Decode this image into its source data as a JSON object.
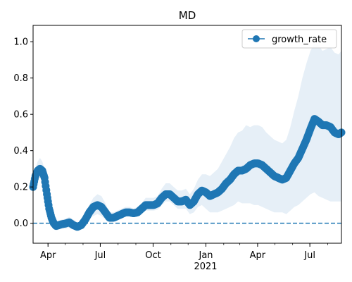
{
  "chart_data": {
    "type": "line",
    "title": "MD",
    "xlabel": "",
    "ylabel": "",
    "x_tick_labels": [
      "Apr",
      "Jul",
      "Oct",
      "Jan",
      "Apr",
      "Jul"
    ],
    "x_tick_dates": [
      "2020-04-01",
      "2020-07-01",
      "2020-10-01",
      "2021-01-01",
      "2021-04-01",
      "2021-07-01"
    ],
    "x_year_label": "2021",
    "y_ticks": [
      0.0,
      0.2,
      0.4,
      0.6,
      0.8,
      1.0
    ],
    "y_tick_labels": [
      "0.0",
      "0.2",
      "0.4",
      "0.6",
      "0.8",
      "1.0"
    ],
    "xlim": [
      "2020-03-06",
      "2021-08-25"
    ],
    "ylim": [
      -0.11,
      1.09
    ],
    "reference_line": {
      "y": 0,
      "style": "dashed"
    },
    "legend": {
      "position": "upper right",
      "entries": [
        "growth_rate"
      ]
    },
    "colors": {
      "line": "#1f77b4",
      "band": "#dce8f4",
      "axes": "#000000"
    },
    "series": [
      {
        "name": "growth_rate",
        "x": [
          "2020-03-06",
          "2020-03-10",
          "2020-03-14",
          "2020-03-18",
          "2020-03-22",
          "2020-03-26",
          "2020-03-30",
          "2020-04-03",
          "2020-04-07",
          "2020-04-11",
          "2020-04-15",
          "2020-04-20",
          "2020-04-25",
          "2020-05-01",
          "2020-05-08",
          "2020-05-15",
          "2020-05-22",
          "2020-05-29",
          "2020-06-05",
          "2020-06-12",
          "2020-06-19",
          "2020-06-26",
          "2020-07-03",
          "2020-07-10",
          "2020-07-17",
          "2020-07-24",
          "2020-07-31",
          "2020-08-07",
          "2020-08-14",
          "2020-08-21",
          "2020-08-28",
          "2020-09-04",
          "2020-09-11",
          "2020-09-18",
          "2020-09-25",
          "2020-10-02",
          "2020-10-09",
          "2020-10-16",
          "2020-10-23",
          "2020-10-30",
          "2020-11-06",
          "2020-11-13",
          "2020-11-20",
          "2020-11-27",
          "2020-12-04",
          "2020-12-11",
          "2020-12-18",
          "2020-12-25",
          "2021-01-01",
          "2021-01-08",
          "2021-01-15",
          "2021-01-22",
          "2021-01-29",
          "2021-02-05",
          "2021-02-12",
          "2021-02-19",
          "2021-02-26",
          "2021-03-05",
          "2021-03-12",
          "2021-03-19",
          "2021-03-26",
          "2021-04-02",
          "2021-04-09",
          "2021-04-16",
          "2021-04-23",
          "2021-04-30",
          "2021-05-07",
          "2021-05-14",
          "2021-05-21",
          "2021-05-28",
          "2021-06-04",
          "2021-06-11",
          "2021-06-18",
          "2021-06-25",
          "2021-07-02",
          "2021-07-09",
          "2021-07-16",
          "2021-07-23",
          "2021-07-30",
          "2021-08-06",
          "2021-08-13",
          "2021-08-20",
          "2021-08-25"
        ],
        "y": [
          0.2,
          0.26,
          0.29,
          0.3,
          0.29,
          0.25,
          0.16,
          0.08,
          0.03,
          0.0,
          -0.015,
          -0.01,
          -0.005,
          -0.002,
          0.005,
          -0.01,
          -0.02,
          -0.01,
          0.02,
          0.06,
          0.09,
          0.1,
          0.09,
          0.06,
          0.03,
          0.03,
          0.04,
          0.05,
          0.06,
          0.06,
          0.055,
          0.06,
          0.08,
          0.1,
          0.1,
          0.1,
          0.11,
          0.14,
          0.16,
          0.16,
          0.14,
          0.12,
          0.12,
          0.13,
          0.1,
          0.12,
          0.16,
          0.18,
          0.17,
          0.15,
          0.16,
          0.17,
          0.19,
          0.22,
          0.24,
          0.27,
          0.29,
          0.29,
          0.3,
          0.32,
          0.33,
          0.33,
          0.32,
          0.3,
          0.28,
          0.26,
          0.25,
          0.24,
          0.25,
          0.29,
          0.33,
          0.36,
          0.41,
          0.46,
          0.52,
          0.575,
          0.56,
          0.54,
          0.54,
          0.53,
          0.5,
          0.49,
          0.5
        ],
        "lower": [
          0.17,
          0.22,
          0.24,
          0.25,
          0.24,
          0.2,
          0.12,
          0.04,
          0.0,
          -0.03,
          -0.04,
          -0.035,
          -0.03,
          -0.03,
          -0.025,
          -0.035,
          -0.04,
          -0.03,
          0.0,
          0.03,
          0.04,
          0.05,
          0.04,
          0.02,
          0.005,
          0.01,
          0.02,
          0.03,
          0.04,
          0.04,
          0.035,
          0.04,
          0.055,
          0.07,
          0.07,
          0.07,
          0.075,
          0.1,
          0.12,
          0.12,
          0.1,
          0.08,
          0.08,
          0.08,
          0.05,
          0.06,
          0.09,
          0.1,
          0.08,
          0.06,
          0.06,
          0.06,
          0.07,
          0.08,
          0.09,
          0.1,
          0.12,
          0.11,
          0.11,
          0.11,
          0.1,
          0.1,
          0.09,
          0.08,
          0.07,
          0.06,
          0.06,
          0.06,
          0.05,
          0.07,
          0.09,
          0.1,
          0.12,
          0.14,
          0.16,
          0.17,
          0.15,
          0.14,
          0.13,
          0.12,
          0.12,
          0.12,
          0.12
        ],
        "upper": [
          0.23,
          0.3,
          0.34,
          0.36,
          0.34,
          0.3,
          0.21,
          0.13,
          0.07,
          0.03,
          0.01,
          0.015,
          0.02,
          0.025,
          0.035,
          0.02,
          0.005,
          0.01,
          0.05,
          0.1,
          0.14,
          0.16,
          0.15,
          0.11,
          0.06,
          0.06,
          0.07,
          0.08,
          0.09,
          0.09,
          0.08,
          0.09,
          0.11,
          0.14,
          0.14,
          0.14,
          0.15,
          0.19,
          0.22,
          0.22,
          0.2,
          0.18,
          0.18,
          0.19,
          0.16,
          0.19,
          0.24,
          0.27,
          0.27,
          0.26,
          0.28,
          0.3,
          0.34,
          0.38,
          0.42,
          0.47,
          0.5,
          0.51,
          0.54,
          0.53,
          0.54,
          0.54,
          0.53,
          0.5,
          0.48,
          0.46,
          0.45,
          0.44,
          0.46,
          0.53,
          0.62,
          0.7,
          0.8,
          0.88,
          0.95,
          0.99,
          0.98,
          0.95,
          0.96,
          0.97,
          0.94,
          0.93,
          0.95
        ]
      }
    ]
  }
}
